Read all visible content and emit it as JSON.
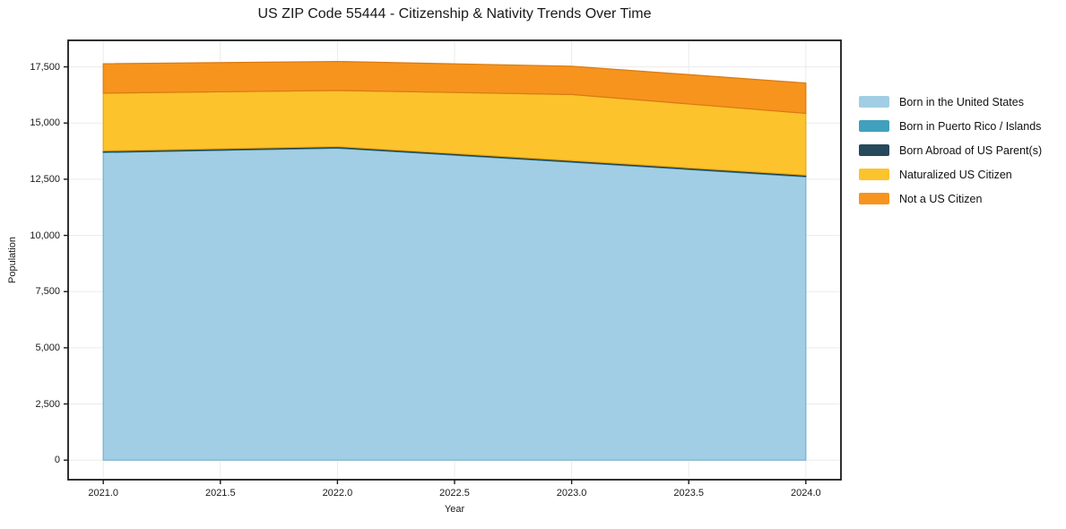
{
  "chart_data": {
    "type": "area",
    "stacked": true,
    "title": "US ZIP Code 55444 - Citizenship & Nativity Trends Over Time",
    "xlabel": "Year",
    "ylabel": "Population",
    "x": [
      2021,
      2022,
      2023,
      2024
    ],
    "series": [
      {
        "name": "Born in the United States",
        "color": "#a1cee4",
        "edge_color": "#74afd3",
        "values": [
          13690,
          13880,
          13260,
          12610
        ]
      },
      {
        "name": "Born in Puerto Rico / Islands",
        "color": "#41a0bd",
        "edge_color": "#2f7e98",
        "values": [
          30,
          30,
          30,
          30
        ]
      },
      {
        "name": "Born Abroad of US Parent(s)",
        "color": "#27495c",
        "edge_color": "#1b3440",
        "values": [
          40,
          40,
          40,
          40
        ]
      },
      {
        "name": "Naturalized US Citizen",
        "color": "#fcc32d",
        "edge_color": "#e2a414",
        "values": [
          2570,
          2500,
          2940,
          2750
        ]
      },
      {
        "name": "Not a US Citizen",
        "color": "#f6941e",
        "edge_color": "#d97a12",
        "values": [
          1310,
          1290,
          1260,
          1350
        ]
      }
    ],
    "totals": [
      17640,
      17740,
      17530,
      16780
    ],
    "xlim": [
      2020.85,
      2024.15
    ],
    "ylim": [
      -870,
      18680
    ],
    "xticks": {
      "values": [
        2021.0,
        2021.5,
        2022.0,
        2022.5,
        2023.0,
        2023.5,
        2024.0
      ],
      "labels": [
        "2021.0",
        "2021.5",
        "2022.0",
        "2022.5",
        "2023.0",
        "2023.5",
        "2024.0"
      ]
    },
    "yticks": {
      "values": [
        0,
        2500,
        5000,
        7500,
        10000,
        12500,
        15000,
        17500
      ],
      "labels": [
        "0",
        "2,500",
        "5,000",
        "7,500",
        "10,000",
        "12,500",
        "15,000",
        "17,500"
      ]
    },
    "grid": true,
    "grid_color": "#ebebeb",
    "spine_color": "#1a1a1a",
    "background_color": "#ffffff",
    "legend_position": "right-outside"
  }
}
